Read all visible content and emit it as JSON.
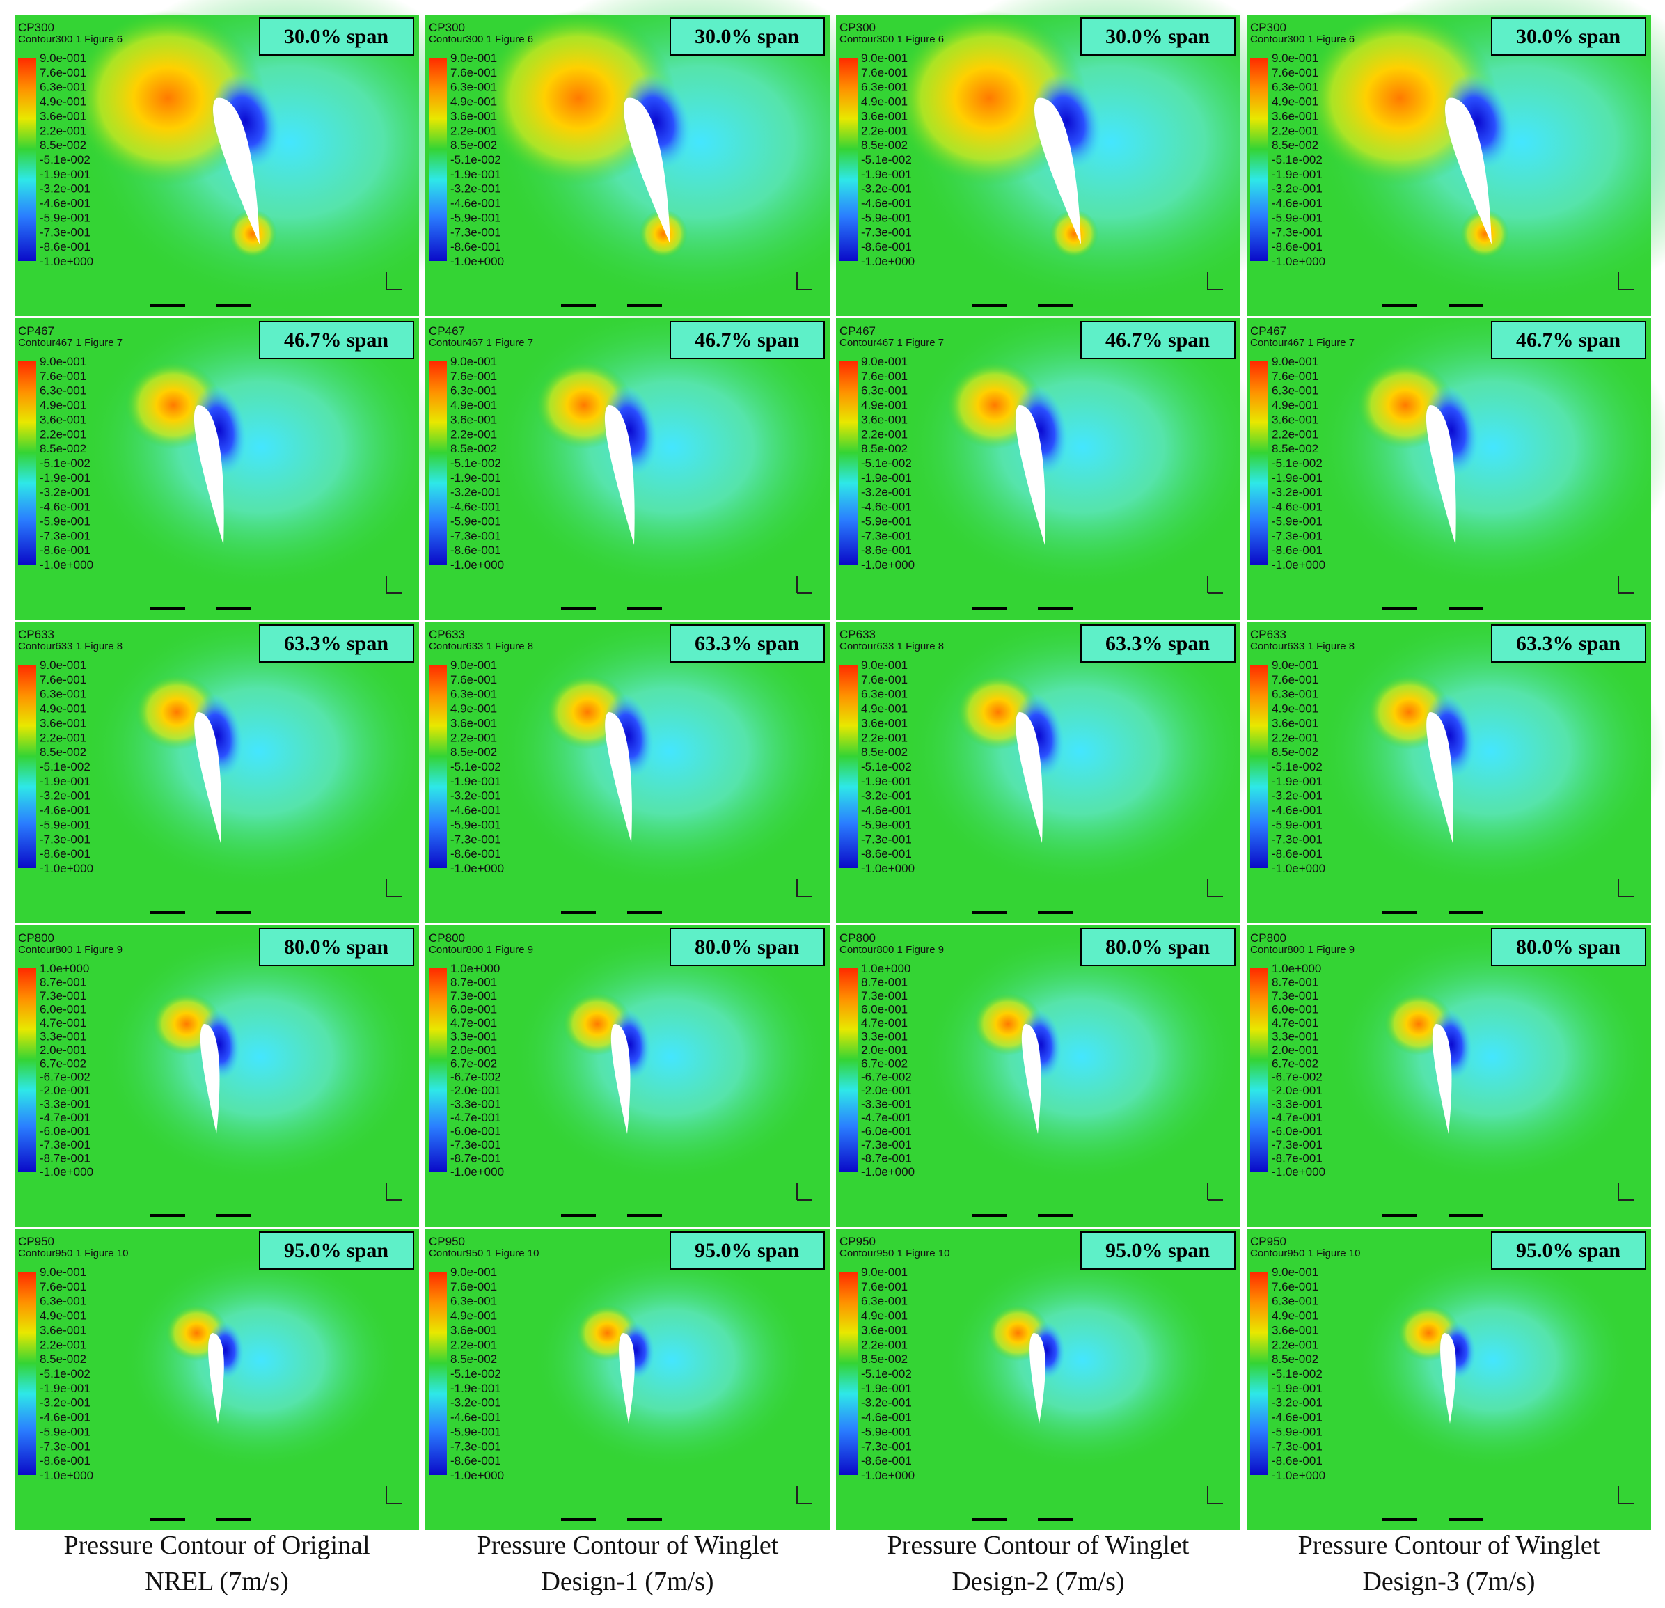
{
  "columns": [
    {
      "caption": [
        "Pressure Contour of Original",
        "NREL (7m/s)"
      ]
    },
    {
      "caption": [
        "Pressure Contour of Winglet",
        "Design-1 (7m/s)"
      ]
    },
    {
      "caption": [
        "Pressure Contour of Winglet",
        "Design-2 (7m/s)"
      ]
    },
    {
      "caption": [
        "Pressure Contour of Winglet",
        "Design-3 (7m/s)"
      ]
    }
  ],
  "rows": [
    {
      "span": "30.0% span",
      "cp": "CP300",
      "contour": "Contour300 1 Figure 6",
      "legend": [
        "9.0e-001",
        "7.6e-001",
        "6.3e-001",
        "4.9e-001",
        "3.6e-001",
        "2.2e-001",
        "8.5e-002",
        "-5.1e-002",
        "-1.9e-001",
        "-3.2e-001",
        "-4.6e-001",
        "-5.9e-001",
        "-7.3e-001",
        "-8.6e-001",
        "-1.0e+000"
      ]
    },
    {
      "span": "46.7% span",
      "cp": "CP467",
      "contour": "Contour467 1 Figure 7",
      "legend": [
        "9.0e-001",
        "7.6e-001",
        "6.3e-001",
        "4.9e-001",
        "3.6e-001",
        "2.2e-001",
        "8.5e-002",
        "-5.1e-002",
        "-1.9e-001",
        "-3.2e-001",
        "-4.6e-001",
        "-5.9e-001",
        "-7.3e-001",
        "-8.6e-001",
        "-1.0e+000"
      ]
    },
    {
      "span": "63.3% span",
      "cp": "CP633",
      "contour": "Contour633 1 Figure 8",
      "legend": [
        "9.0e-001",
        "7.6e-001",
        "6.3e-001",
        "4.9e-001",
        "3.6e-001",
        "2.2e-001",
        "8.5e-002",
        "-5.1e-002",
        "-1.9e-001",
        "-3.2e-001",
        "-4.6e-001",
        "-5.9e-001",
        "-7.3e-001",
        "-8.6e-001",
        "-1.0e+000"
      ]
    },
    {
      "span": "80.0% span",
      "cp": "CP800",
      "contour": "Contour800 1 Figure 9",
      "legend": [
        "1.0e+000",
        "8.7e-001",
        "7.3e-001",
        "6.0e-001",
        "4.7e-001",
        "3.3e-001",
        "2.0e-001",
        "6.7e-002",
        "-6.7e-002",
        "-2.0e-001",
        "-3.3e-001",
        "-4.7e-001",
        "-6.0e-001",
        "-7.3e-001",
        "-8.7e-001",
        "-1.0e+000"
      ]
    },
    {
      "span": "95.0% span",
      "cp": "CP950",
      "contour": "Contour950 1 Figure 10",
      "legend": [
        "9.0e-001",
        "7.6e-001",
        "6.3e-001",
        "4.9e-001",
        "3.6e-001",
        "2.2e-001",
        "8.5e-002",
        "-5.1e-002",
        "-1.9e-001",
        "-3.2e-001",
        "-4.6e-001",
        "-5.9e-001",
        "-7.3e-001",
        "-8.6e-001",
        "-1.0e+000"
      ]
    }
  ]
}
